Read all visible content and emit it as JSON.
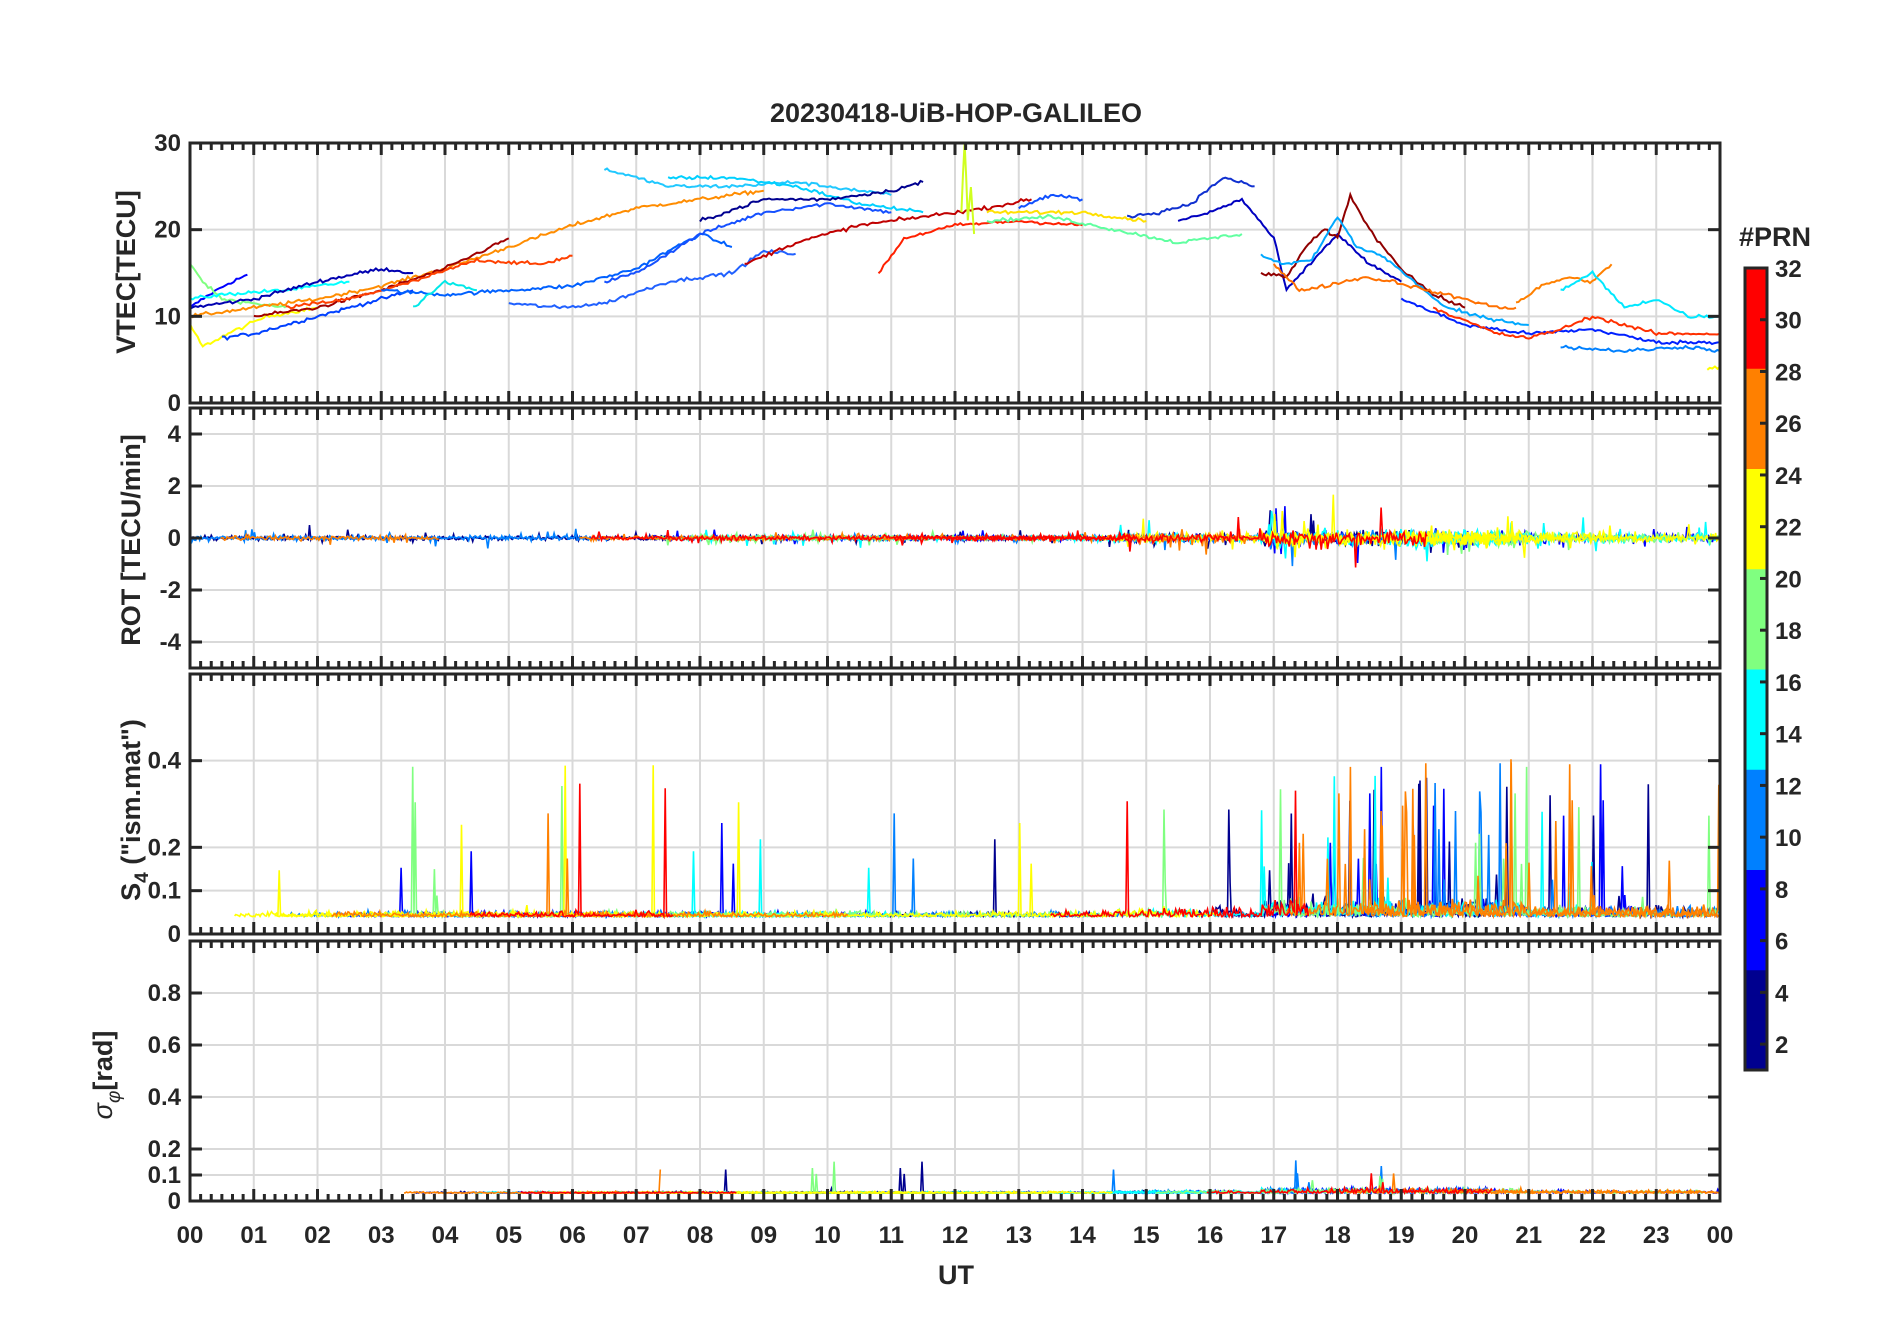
{
  "chart_data": {
    "type": "line",
    "title": "20230418-UiB-HOP-GALILEO",
    "xlabel": "UT",
    "x_ticks": [
      "00",
      "01",
      "02",
      "03",
      "04",
      "05",
      "06",
      "07",
      "08",
      "09",
      "10",
      "11",
      "12",
      "13",
      "14",
      "15",
      "16",
      "17",
      "18",
      "19",
      "20",
      "21",
      "22",
      "23",
      "00"
    ],
    "xlim": [
      0,
      24
    ],
    "colorbar": {
      "label": "#PRN",
      "range": [
        1,
        32
      ],
      "ticks": [
        "32",
        "30",
        "28",
        "26",
        "24",
        "22",
        "20",
        "18",
        "16",
        "14",
        "12",
        "10",
        "8",
        "6",
        "4",
        "2"
      ],
      "colormap": "jet",
      "colors": [
        "#00008f",
        "#0000ff",
        "#0080ff",
        "#00ffff",
        "#80ff80",
        "#ffff00",
        "#ff8000",
        "#ff0000",
        "#800000"
      ]
    },
    "panels": [
      {
        "name": "vtec",
        "ylabel": "VTEC[TECU]",
        "ylim": [
          0,
          30
        ],
        "y_ticks": [
          {
            "v": 0,
            "t": "0"
          },
          {
            "v": 10,
            "t": "10"
          },
          {
            "v": 20,
            "t": "20"
          },
          {
            "v": 30,
            "t": "30"
          }
        ],
        "series": [
          {
            "prn": 3,
            "color": "#0000ff",
            "x": [
              0.0,
              0.3,
              0.6,
              0.9
            ],
            "y": [
              11,
              12.5,
              13.8,
              14.8
            ]
          },
          {
            "prn": 16,
            "color": "#80ff80",
            "x": [
              0.0,
              0.2,
              0.5,
              1.0,
              1.5
            ],
            "y": [
              16,
              14,
              12,
              11.5,
              11
            ]
          },
          {
            "prn": 21,
            "color": "#ffff00",
            "x": [
              0.0,
              0.2,
              0.6,
              1.2,
              2.0
            ],
            "y": [
              9,
              6.5,
              8,
              10,
              11
            ]
          },
          {
            "prn": 12,
            "color": "#00ffff",
            "x": [
              0.0,
              0.5,
              1.0,
              1.5,
              2.0,
              2.5
            ],
            "y": [
              12,
              12.5,
              12.8,
              13,
              13.5,
              14
            ]
          },
          {
            "prn": 6,
            "color": "#0040ff",
            "x": [
              0.5,
              1.0,
              2.0,
              3.0,
              3.5
            ],
            "y": [
              7.5,
              8,
              10,
              12,
              13
            ]
          },
          {
            "prn": 2,
            "color": "#0000b0",
            "x": [
              0.0,
              1.0,
              2.0,
              3.0,
              3.5
            ],
            "y": [
              11,
              12,
              14,
              15.5,
              15
            ]
          },
          {
            "prn": 22,
            "color": "#ff8c00",
            "x": [
              0.0,
              1.0,
              2.0,
              3.0,
              4.0,
              5.0,
              6.0,
              7.0,
              8.0,
              9.0
            ],
            "y": [
              10,
              11,
              12,
              13.5,
              15.5,
              18,
              20.5,
              22.5,
              23.5,
              24.5
            ]
          },
          {
            "prn": 31,
            "color": "#a00000",
            "x": [
              1.0,
              2.0,
              3.0,
              4.0,
              5.0
            ],
            "y": [
              10,
              11,
              13,
              15.5,
              19
            ]
          },
          {
            "prn": 26,
            "color": "#ff4000",
            "x": [
              1.5,
              2.5,
              3.5,
              4.5,
              5.5,
              6.0
            ],
            "y": [
              11,
              12,
              14,
              16.5,
              16,
              17
            ]
          },
          {
            "prn": 9,
            "color": "#0060ff",
            "x": [
              3.0,
              4.0,
              5.0,
              6.0,
              7.0,
              8.0,
              8.5
            ],
            "y": [
              13,
              12.5,
              13,
              13.5,
              15.5,
              19.5,
              18
            ]
          },
          {
            "prn": 14,
            "color": "#00e8e8",
            "x": [
              3.5,
              4.0,
              4.5
            ],
            "y": [
              11,
              14,
              13
            ]
          },
          {
            "prn": 5,
            "color": "#2060ff",
            "x": [
              5.0,
              5.8,
              6.5,
              7.5,
              8.5,
              9.0,
              9.5
            ],
            "y": [
              11.5,
              11,
              11.5,
              14,
              15,
              17.5,
              17.2
            ]
          },
          {
            "prn": 4,
            "color": "#1550ff",
            "x": [
              6.5,
              7.0,
              8.0,
              9.0,
              10.0,
              11.0
            ],
            "y": [
              14,
              15,
              19.5,
              22,
              23,
              22
            ]
          },
          {
            "prn": 13,
            "color": "#20c8ff",
            "x": [
              6.5,
              7.5,
              8.5,
              9.5,
              10.5,
              11.0
            ],
            "y": [
              27,
              25,
              25,
              25.5,
              24.5,
              24
            ]
          },
          {
            "prn": 11,
            "color": "#00d0ff",
            "x": [
              7.5,
              8.5,
              9.5,
              10.5,
              11.5
            ],
            "y": [
              26,
              26,
              25,
              23,
              22
            ]
          },
          {
            "prn": 1,
            "color": "#000090",
            "x": [
              8.0,
              9.0,
              10.0,
              11.0,
              11.5
            ],
            "y": [
              21,
              23.5,
              23.5,
              24.5,
              25.5
            ]
          },
          {
            "prn": 30,
            "color": "#c00000",
            "x": [
              8.7,
              9.5,
              10.5,
              11.5,
              12.5,
              13.2
            ],
            "y": [
              16,
              18.5,
              20.5,
              21.5,
              22.5,
              23.5
            ]
          },
          {
            "prn": 25,
            "color": "#ff2000",
            "x": [
              10.8,
              11.2,
              12.0,
              13.0,
              14.0
            ],
            "y": [
              15,
              19,
              20.5,
              21,
              20.5
            ]
          },
          {
            "prn": 18,
            "color": "#d0ff20",
            "x": [
              12.1,
              12.15,
              12.2,
              12.25,
              12.3
            ],
            "y": [
              22,
              31,
              21,
              25,
              19.5
            ]
          },
          {
            "prn": 20,
            "color": "#ffe000",
            "x": [
              12.5,
              13.0,
              14.0,
              15.0
            ],
            "y": [
              22,
              22,
              22,
              21
            ]
          },
          {
            "prn": 15,
            "color": "#60ffa0",
            "x": [
              12.5,
              13.5,
              14.5,
              15.5,
              16.5
            ],
            "y": [
              21,
              21.5,
              20,
              18.5,
              19.5
            ]
          },
          {
            "prn": 8,
            "color": "#1050ff",
            "x": [
              13.0,
              13.5,
              14.0
            ],
            "y": [
              22.5,
              24,
              23.5
            ]
          },
          {
            "prn": 1,
            "color": "#1030d0",
            "x": [
              14.7,
              15.2,
              15.7,
              16.2,
              16.7
            ],
            "y": [
              21.5,
              22,
              23,
              26,
              25
            ]
          },
          {
            "prn": 2,
            "color": "#0000c0",
            "x": [
              15.5,
              16.0,
              16.5,
              17.0,
              17.2,
              17.5,
              18.0,
              18.5,
              19.0
            ],
            "y": [
              21,
              22,
              23.5,
              19,
              13,
              15.5,
              19.5,
              16,
              14
            ]
          },
          {
            "prn": 32,
            "color": "#900000",
            "x": [
              16.8,
              17.2,
              17.5,
              17.8,
              18.0,
              18.2,
              18.5,
              19.0,
              19.5,
              20.0
            ],
            "y": [
              15,
              14.5,
              18,
              20,
              19,
              24,
              20,
              15.5,
              12.5,
              11
            ]
          },
          {
            "prn": 10,
            "color": "#00a8ff",
            "x": [
              16.8,
              17.2,
              17.6,
              18.0,
              18.3,
              18.7,
              19.2,
              19.7,
              20.2,
              21.0
            ],
            "y": [
              17,
              16,
              16.5,
              21.5,
              18,
              17,
              14,
              11,
              10,
              9
            ]
          },
          {
            "prn": 24,
            "color": "#ff7000",
            "x": [
              17.0,
              17.4,
              17.8,
              18.4,
              18.9,
              19.4,
              20.0,
              20.5,
              20.8
            ],
            "y": [
              16,
              13,
              13.5,
              14.5,
              14,
              13,
              12,
              11,
              11
            ]
          },
          {
            "prn": 3,
            "color": "#0020ff",
            "x": [
              19.0,
              20.0,
              21.0,
              22.0,
              23.0,
              24.0
            ],
            "y": [
              12,
              9,
              8,
              8.5,
              7,
              7
            ]
          },
          {
            "prn": 27,
            "color": "#ff3000",
            "x": [
              19.5,
              20.5,
              21.0,
              21.5,
              22.0,
              22.5,
              23.0,
              23.5,
              24.0
            ],
            "y": [
              11,
              8,
              7.5,
              8.5,
              10,
              9,
              8,
              8,
              8
            ]
          },
          {
            "prn": 23,
            "color": "#ff8000",
            "x": [
              20.8,
              21.2,
              21.6,
              22.0,
              22.3
            ],
            "y": [
              11.5,
              13.5,
              14.5,
              14,
              16
            ]
          },
          {
            "prn": 12,
            "color": "#00e8ff",
            "x": [
              21.5,
              22.0,
              22.5,
              23.0,
              23.5,
              24.0
            ],
            "y": [
              13,
              15,
              11,
              12,
              10,
              10
            ]
          },
          {
            "prn": 5,
            "color": "#0080ff",
            "x": [
              21.5,
              22.5,
              23.5,
              24.0
            ],
            "y": [
              6.5,
              6,
              6.5,
              6
            ]
          },
          {
            "prn": 19,
            "color": "#ffff00",
            "x": [
              23.8,
              24.0
            ],
            "y": [
              3.8,
              4.2
            ]
          }
        ]
      },
      {
        "name": "rot",
        "ylabel": "ROT [TECU/min]",
        "ylim": [
          -5,
          5
        ],
        "y_ticks": [
          {
            "v": -4,
            "t": "-4"
          },
          {
            "v": -2,
            "t": "-2"
          },
          {
            "v": 0,
            "t": "0"
          },
          {
            "v": 2,
            "t": "2"
          },
          {
            "v": 4,
            "t": "4"
          }
        ]
      },
      {
        "name": "s4",
        "ylabel": "S4 (\"ism.mat\")",
        "ylim": [
          0,
          0.6
        ],
        "y_ticks": [
          {
            "v": 0,
            "t": "0"
          },
          {
            "v": 0.1,
            "t": "0.1"
          },
          {
            "v": 0.2,
            "t": "0.2"
          },
          {
            "v": 0.4,
            "t": "0.4"
          }
        ]
      },
      {
        "name": "sigma_phi",
        "ylabel": "σφ[rad]",
        "ylim": [
          0,
          1
        ],
        "y_ticks": [
          {
            "v": 0,
            "t": "0"
          },
          {
            "v": 0.1,
            "t": "0.1"
          },
          {
            "v": 0.2,
            "t": "0.2"
          },
          {
            "v": 0.4,
            "t": "0.4"
          },
          {
            "v": 0.6,
            "t": "0.6"
          },
          {
            "v": 0.8,
            "t": "0.8"
          }
        ]
      }
    ]
  },
  "labels": {
    "title": "20230418-UiB-HOP-GALILEO",
    "xlabel": "UT",
    "colorbar_label": "#PRN",
    "vtec_ylabel": "VTEC[TECU]",
    "rot_ylabel": "ROT [TECU/min]",
    "s4_main": "S",
    "s4_sub": "4",
    "s4_rest": " (\"ism.mat\")",
    "sig_main": "σ",
    "sig_sub": "φ",
    "sig_rest": "[rad]"
  }
}
